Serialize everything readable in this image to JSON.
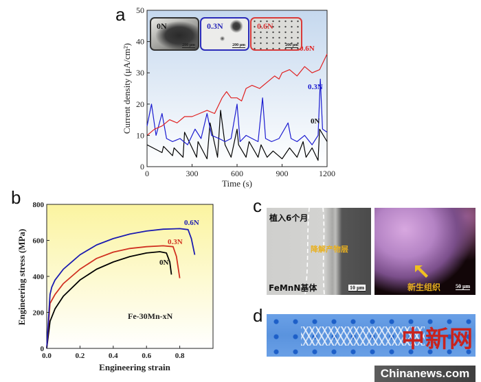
{
  "panels": {
    "a": "a",
    "b": "b",
    "c": "c",
    "d": "d"
  },
  "chart_data": [
    {
      "id": "a",
      "type": "line",
      "title": "",
      "xlabel": "Time (s)",
      "ylabel": "Current density (μA/cm²)",
      "xlim": [
        0,
        1200
      ],
      "ylim": [
        0,
        50
      ],
      "xticks": [
        0,
        300,
        600,
        900,
        1200
      ],
      "yticks": [
        0,
        10,
        20,
        30,
        40,
        50
      ],
      "grid": false,
      "series": [
        {
          "name": "0N",
          "color": "#000000",
          "x": [
            0,
            100,
            110,
            170,
            180,
            240,
            250,
            330,
            340,
            400,
            420,
            470,
            490,
            520,
            560,
            600,
            610,
            660,
            680,
            740,
            760,
            800,
            840,
            900,
            950,
            1000,
            1040,
            1060,
            1100,
            1140,
            1150,
            1200
          ],
          "y": [
            7,
            4.5,
            6.5,
            3.5,
            6,
            3,
            11,
            3,
            8,
            2.5,
            14,
            3,
            18,
            7,
            3,
            12,
            7,
            3,
            8,
            3,
            7,
            3,
            5,
            2.5,
            6,
            3,
            8,
            3,
            6,
            2,
            12,
            8
          ]
        },
        {
          "name": "0.3N",
          "color": "#1a1ad0",
          "x": [
            0,
            30,
            60,
            100,
            130,
            170,
            220,
            270,
            320,
            360,
            400,
            430,
            480,
            520,
            560,
            600,
            620,
            660,
            700,
            740,
            770,
            790,
            830,
            880,
            940,
            960,
            1000,
            1050,
            1100,
            1140,
            1155,
            1170,
            1200
          ],
          "y": [
            13,
            20,
            10,
            17,
            9,
            8,
            9,
            7,
            12,
            9,
            17,
            10,
            9,
            8,
            9,
            20,
            8,
            10,
            9,
            8,
            22,
            9,
            8,
            9,
            14,
            9,
            8,
            10,
            7,
            10,
            28,
            12,
            11
          ]
        },
        {
          "name": "0.6N",
          "color": "#e02020",
          "x": [
            0,
            50,
            100,
            150,
            200,
            250,
            300,
            350,
            400,
            450,
            500,
            530,
            560,
            600,
            630,
            660,
            700,
            750,
            800,
            850,
            880,
            900,
            950,
            1000,
            1050,
            1100,
            1150,
            1200
          ],
          "y": [
            10,
            12,
            13,
            15,
            14,
            16,
            16,
            17,
            18,
            17,
            22,
            24,
            22,
            22,
            21,
            25,
            26,
            25,
            27,
            29,
            28,
            30,
            31,
            29,
            32,
            30,
            31,
            36
          ]
        }
      ],
      "annotations": [
        "0.6N",
        "0.3N",
        "0N"
      ],
      "insets": [
        {
          "label": "0N",
          "scale": "200 μm",
          "color": "#333333"
        },
        {
          "label": "0.3N",
          "scale": "200 μm",
          "color": "#2a2ab8"
        },
        {
          "label": "0.6N",
          "scale": "200 μm",
          "color": "#d83a3a"
        }
      ]
    },
    {
      "id": "b",
      "type": "line",
      "title": "",
      "xlabel": "Engineering strain",
      "ylabel": "Engineering stress (MPa)",
      "xlim": [
        0,
        1.0
      ],
      "ylim": [
        0,
        800
      ],
      "xticks": [
        "0.0",
        "0.2",
        "0.4",
        "0.6",
        "0.8"
      ],
      "yticks": [
        "0",
        "200",
        "400",
        "600",
        "800"
      ],
      "grid": false,
      "annotation": "Fe-30Mn-xN",
      "series": [
        {
          "name": "0N",
          "color": "#000000",
          "x": [
            0,
            0.02,
            0.05,
            0.1,
            0.2,
            0.3,
            0.4,
            0.5,
            0.6,
            0.68,
            0.72,
            0.74,
            0.75
          ],
          "y": [
            0,
            150,
            220,
            290,
            380,
            440,
            480,
            510,
            530,
            537,
            530,
            480,
            410
          ]
        },
        {
          "name": "0.3N",
          "color": "#d03020",
          "x": [
            0,
            0.02,
            0.05,
            0.1,
            0.2,
            0.3,
            0.4,
            0.5,
            0.6,
            0.7,
            0.76,
            0.78,
            0.8
          ],
          "y": [
            0,
            250,
            300,
            360,
            440,
            500,
            535,
            555,
            565,
            570,
            565,
            510,
            390
          ]
        },
        {
          "name": "0.6N",
          "color": "#1a1ab0",
          "x": [
            0,
            0.02,
            0.03,
            0.05,
            0.1,
            0.2,
            0.3,
            0.4,
            0.5,
            0.6,
            0.7,
            0.8,
            0.85,
            0.87,
            0.89
          ],
          "y": [
            0,
            300,
            340,
            380,
            440,
            520,
            575,
            610,
            635,
            652,
            662,
            665,
            660,
            610,
            520
          ]
        }
      ]
    }
  ],
  "panel_c": {
    "left_top_label": "植入6个月",
    "left_layer_label": "降解产物层",
    "left_bottom_label": "FeMnN基体",
    "left_scale": "10 μm",
    "right_label": "新生组织",
    "right_scale": "50 μm"
  },
  "watermark": {
    "cn": "中新网",
    "site": "Chinanews.com"
  }
}
